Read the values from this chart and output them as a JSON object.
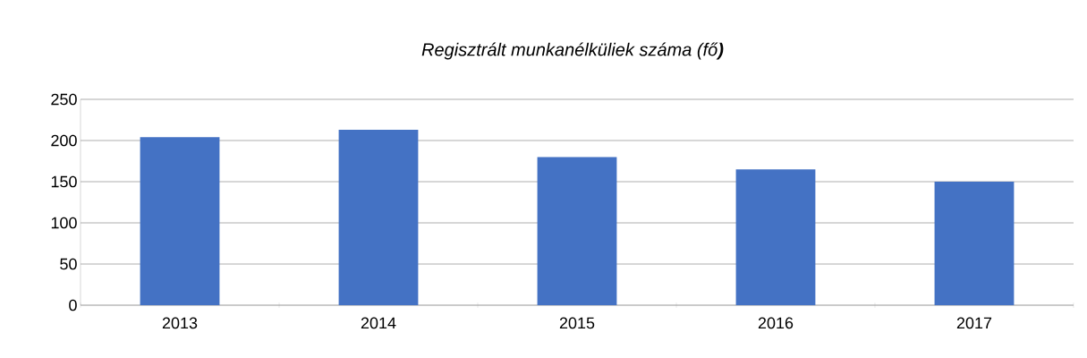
{
  "chart_data": {
    "type": "bar",
    "title": "Regisztrált munkanélküliek száma (fő**)**",
    "categories": [
      "2013",
      "2014",
      "2015",
      "2016",
      "2017"
    ],
    "values": [
      204,
      213,
      180,
      165,
      150
    ],
    "color": "#4472c4",
    "ylim": [
      0,
      250
    ],
    "yticks": [
      0,
      50,
      100,
      150,
      200,
      250
    ],
    "grid": "y"
  }
}
